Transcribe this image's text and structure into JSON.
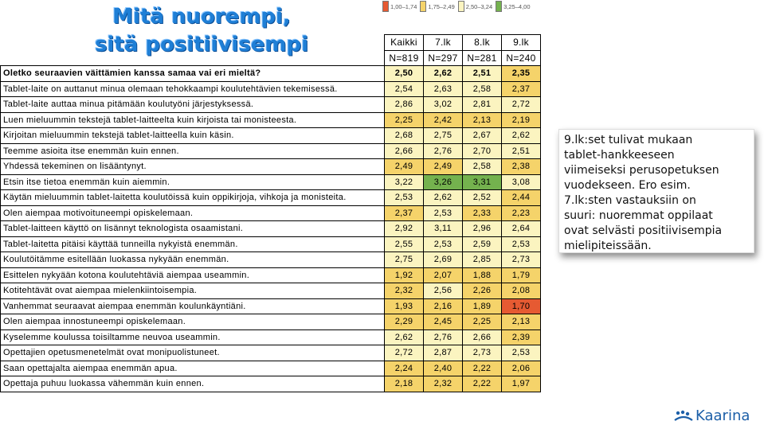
{
  "title": "Mitä nuorempi, sitä positiivisempi",
  "legend": [
    {
      "label": "1,00–1,74",
      "color": "#e65a32"
    },
    {
      "label": "1,75–2,49",
      "color": "#f5d36a"
    },
    {
      "label": "2,50–3,24",
      "color": "#fbf4c0"
    },
    {
      "label": "3,25–4,00",
      "color": "#74b24e"
    }
  ],
  "table": {
    "columns": [
      "Kaikki",
      "7.lk",
      "8.lk",
      "9.lk"
    ],
    "counts": [
      "N=819",
      "N=297",
      "N=281",
      "N=240"
    ],
    "rows": [
      {
        "question": "Oletko seuraavien väittämien kanssa samaa vai eri mieltä?",
        "values": [
          "2,50",
          "2,62",
          "2,51",
          "2,35"
        ],
        "colors": [
          "#fbf4c0",
          "#fbf4c0",
          "#fbf4c0",
          "#f5d36a"
        ],
        "bold": true
      },
      {
        "question": "Tablet-laite on auttanut minua olemaan tehokkaampi koulutehtävien tekemisessä.",
        "values": [
          "2,54",
          "2,63",
          "2,58",
          "2,37"
        ],
        "colors": [
          "#fbf4c0",
          "#fbf4c0",
          "#fbf4c0",
          "#f5d36a"
        ]
      },
      {
        "question": "Tablet-laite auttaa minua pitämään koulutyöni järjestyksessä.",
        "values": [
          "2,86",
          "3,02",
          "2,81",
          "2,72"
        ],
        "colors": [
          "#fbf4c0",
          "#fbf4c0",
          "#fbf4c0",
          "#fbf4c0"
        ]
      },
      {
        "question": "Luen mieluummin tekstejä tablet-laitteelta kuin kirjoista tai monisteesta.",
        "values": [
          "2,25",
          "2,42",
          "2,13",
          "2,19"
        ],
        "colors": [
          "#f5d36a",
          "#f5d36a",
          "#f5d36a",
          "#f5d36a"
        ]
      },
      {
        "question": "Kirjoitan mieluummin tekstejä tablet-laitteella kuin käsin.",
        "values": [
          "2,68",
          "2,75",
          "2,67",
          "2,62"
        ],
        "colors": [
          "#fbf4c0",
          "#fbf4c0",
          "#fbf4c0",
          "#fbf4c0"
        ]
      },
      {
        "question": "Teemme asioita itse enemmän kuin ennen.",
        "values": [
          "2,66",
          "2,76",
          "2,70",
          "2,51"
        ],
        "colors": [
          "#fbf4c0",
          "#fbf4c0",
          "#fbf4c0",
          "#fbf4c0"
        ]
      },
      {
        "question": "Yhdessä tekeminen on lisääntynyt.",
        "values": [
          "2,49",
          "2,49",
          "2,58",
          "2,38"
        ],
        "colors": [
          "#f5d36a",
          "#f5d36a",
          "#fbf4c0",
          "#f5d36a"
        ]
      },
      {
        "question": "Etsin itse tietoa enemmän kuin aiemmin.",
        "values": [
          "3,22",
          "3,26",
          "3,31",
          "3,08"
        ],
        "colors": [
          "#fbf4c0",
          "#74b24e",
          "#74b24e",
          "#fbf4c0"
        ]
      },
      {
        "question": "Käytän mieluummin tablet-laitetta koulutöissä kuin oppikirjoja, vihkoja ja monisteita.",
        "values": [
          "2,53",
          "2,62",
          "2,52",
          "2,44"
        ],
        "colors": [
          "#fbf4c0",
          "#fbf4c0",
          "#fbf4c0",
          "#f5d36a"
        ]
      },
      {
        "question": "Olen aiempaa motivoituneempi opiskelemaan.",
        "values": [
          "2,37",
          "2,53",
          "2,33",
          "2,23"
        ],
        "colors": [
          "#f5d36a",
          "#fbf4c0",
          "#f5d36a",
          "#f5d36a"
        ]
      },
      {
        "question": "Tablet-laitteen käyttö on lisännyt teknologista osaamistani.",
        "values": [
          "2,92",
          "3,11",
          "2,96",
          "2,64"
        ],
        "colors": [
          "#fbf4c0",
          "#fbf4c0",
          "#fbf4c0",
          "#fbf4c0"
        ]
      },
      {
        "question": "Tablet-laitetta pitäisi käyttää tunneilla nykyistä enemmän.",
        "values": [
          "2,55",
          "2,53",
          "2,59",
          "2,53"
        ],
        "colors": [
          "#fbf4c0",
          "#fbf4c0",
          "#fbf4c0",
          "#fbf4c0"
        ]
      },
      {
        "question": "Koulutöitämme esitellään luokassa nykyään enemmän.",
        "values": [
          "2,75",
          "2,69",
          "2,85",
          "2,73"
        ],
        "colors": [
          "#fbf4c0",
          "#fbf4c0",
          "#fbf4c0",
          "#fbf4c0"
        ]
      },
      {
        "question": "Esittelen nykyään kotona koulutehtäviä aiempaa useammin.",
        "values": [
          "1,92",
          "2,07",
          "1,88",
          "1,79"
        ],
        "colors": [
          "#f5d36a",
          "#f5d36a",
          "#f5d36a",
          "#f5d36a"
        ]
      },
      {
        "question": "Kotitehtävät ovat aiempaa mielenkiintoisempia.",
        "values": [
          "2,32",
          "2,56",
          "2,26",
          "2,08"
        ],
        "colors": [
          "#f5d36a",
          "#fbf4c0",
          "#f5d36a",
          "#f5d36a"
        ]
      },
      {
        "question": "Vanhemmat seuraavat aiempaa enemmän koulunkäyntiäni.",
        "values": [
          "1,93",
          "2,16",
          "1,89",
          "1,70"
        ],
        "colors": [
          "#f5d36a",
          "#f5d36a",
          "#f5d36a",
          "#e65a32"
        ]
      },
      {
        "question": "Olen aiempaa innostuneempi opiskelemaan.",
        "values": [
          "2,29",
          "2,45",
          "2,25",
          "2,13"
        ],
        "colors": [
          "#f5d36a",
          "#f5d36a",
          "#f5d36a",
          "#f5d36a"
        ]
      },
      {
        "question": "Kyselemme koulussa toisiltamme neuvoa useammin.",
        "values": [
          "2,62",
          "2,76",
          "2,66",
          "2,39"
        ],
        "colors": [
          "#fbf4c0",
          "#fbf4c0",
          "#fbf4c0",
          "#f5d36a"
        ]
      },
      {
        "question": "Opettajien opetusmenetelmät ovat monipuolistuneet.",
        "values": [
          "2,72",
          "2,87",
          "2,73",
          "2,53"
        ],
        "colors": [
          "#fbf4c0",
          "#fbf4c0",
          "#fbf4c0",
          "#fbf4c0"
        ]
      },
      {
        "question": "Saan opettajalta aiempaa enemmän apua.",
        "values": [
          "2,24",
          "2,40",
          "2,22",
          "2,06"
        ],
        "colors": [
          "#f5d36a",
          "#f5d36a",
          "#f5d36a",
          "#f5d36a"
        ]
      },
      {
        "question": "Opettaja puhuu luokassa vähemmän kuin ennen.",
        "values": [
          "2,18",
          "2,32",
          "2,22",
          "1,97"
        ],
        "colors": [
          "#f5d36a",
          "#f5d36a",
          "#f5d36a",
          "#f5d36a"
        ]
      }
    ]
  },
  "note": {
    "lines": [
      "9.lk:set tulivat mukaan",
      "tablet-hankkeeseen",
      "viimeiseksi perusopetuksen",
      "vuodekseen. Ero esim.",
      "7.lk:sten vastauksiin on",
      "suuri: nuoremmat oppilaat",
      "ovat selvästi positiivisempia",
      "mielipiteissään."
    ]
  },
  "logo": {
    "text": "Kaarina",
    "icon": "kaarina-logo-icon",
    "color": "#1c5fa8"
  }
}
